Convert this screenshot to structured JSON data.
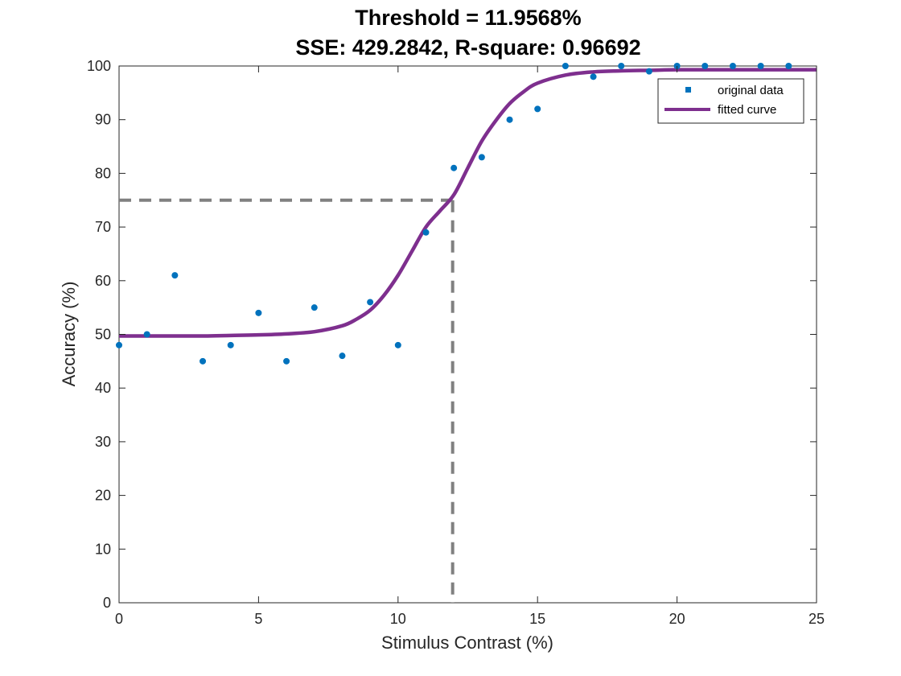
{
  "chart_data": {
    "type": "scatter",
    "title": [
      "Threshold = 11.9568%",
      "SSE: 429.2842, R-square: 0.96692"
    ],
    "xlabel": "Stimulus Contrast (%)",
    "ylabel": "Accuracy (%)",
    "xlim": [
      0,
      25
    ],
    "ylim": [
      0,
      100
    ],
    "xticks": [
      "0",
      "5",
      "10",
      "15",
      "20",
      "25"
    ],
    "yticks": [
      "0",
      "10",
      "20",
      "30",
      "40",
      "50",
      "60",
      "70",
      "80",
      "90",
      "100"
    ],
    "grid": false,
    "legend_position": "top-right",
    "series": [
      {
        "name": "original data",
        "kind": "points",
        "color": "#0072BD",
        "x": [
          0,
          1,
          2,
          3,
          4,
          5,
          6,
          7,
          8,
          9,
          10,
          11,
          12,
          13,
          14,
          15,
          16,
          17,
          18,
          19,
          20,
          21,
          22,
          23,
          24
        ],
        "y": [
          48,
          50,
          61,
          45,
          48,
          54,
          45,
          55,
          46,
          56,
          48,
          69,
          81,
          83,
          90,
          92,
          100,
          98,
          100,
          99,
          100,
          100,
          100,
          100,
          100
        ]
      },
      {
        "name": "fitted curve",
        "kind": "line",
        "color": "#7E2F8E",
        "x": [
          0,
          1,
          2,
          3,
          4,
          5,
          6,
          7,
          8,
          8.5,
          9,
          9.5,
          10,
          10.5,
          11,
          11.5,
          12,
          12.5,
          13,
          13.5,
          14,
          14.5,
          15,
          16,
          17,
          18,
          19,
          20,
          21,
          22,
          23,
          24,
          25
        ],
        "y": [
          49.7,
          49.7,
          49.7,
          49.7,
          49.8,
          49.9,
          50.1,
          50.5,
          51.6,
          52.8,
          54.5,
          57.3,
          61.0,
          65.5,
          70.0,
          73.0,
          76.0,
          81.0,
          86.0,
          89.8,
          93.0,
          95.2,
          96.8,
          98.3,
          98.9,
          99.1,
          99.2,
          99.3,
          99.3,
          99.3,
          99.3,
          99.3,
          99.3
        ]
      }
    ],
    "threshold_guides": {
      "color": "#808080",
      "x": 11.9568,
      "y": 75
    }
  }
}
